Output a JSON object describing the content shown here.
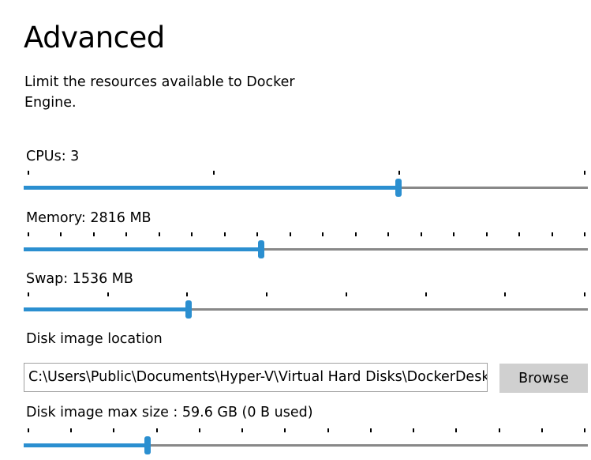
{
  "header": {
    "title": "Advanced",
    "description": "Limit the resources available to Docker Engine."
  },
  "colors": {
    "accent": "#2b8fd0",
    "track": "#888888",
    "button_bg": "#d0d0d0"
  },
  "sliders": {
    "cpus": {
      "label": "CPUs: 3",
      "ticks": 4,
      "fraction": 0.667
    },
    "memory": {
      "label": "Memory: 2816 MB",
      "ticks": 18,
      "fraction": 0.42
    },
    "swap": {
      "label": "Swap: 1536 MB",
      "ticks": 8,
      "fraction": 0.29
    },
    "disk_size": {
      "label": "Disk image max size : 59.6 GB (0 B  used)",
      "ticks": 14,
      "fraction": 0.215
    }
  },
  "disk": {
    "location_label": "Disk image location",
    "path": "C:\\Users\\Public\\Documents\\Hyper-V\\Virtual Hard Disks\\DockerDesktop.vhdx",
    "browse_label": "Browse"
  }
}
